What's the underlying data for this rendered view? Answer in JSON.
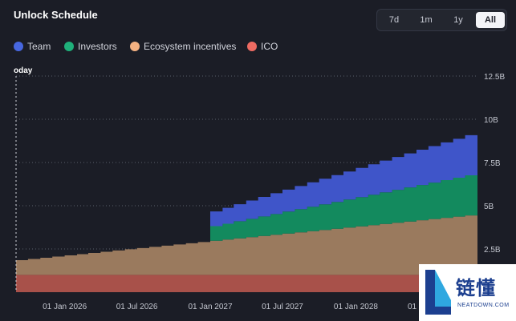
{
  "header": {
    "title": "Unlock Schedule"
  },
  "range_buttons": [
    {
      "label": "7d",
      "active": false
    },
    {
      "label": "1m",
      "active": false
    },
    {
      "label": "1y",
      "active": false
    },
    {
      "label": "All",
      "active": true
    }
  ],
  "colors": {
    "team": "#3f55c9",
    "investors": "#138a5e",
    "ecosystem": "#9a7a5e",
    "ico": "#a8514a",
    "legend_team": "#4767e0",
    "legend_investors": "#1fb07a",
    "legend_ecosystem": "#f4b282",
    "legend_ico": "#ee6b62"
  },
  "watermark": {
    "text": "链懂",
    "sub": "NEATDOWN.COM"
  },
  "chart_data": {
    "type": "area",
    "stacked": true,
    "today_label": "oday",
    "x_ticks": [
      "01 Jan 2026",
      "01 Jul 2026",
      "01 Jan 2027",
      "01 Jul 2027",
      "01 Jan 2028",
      "01 Jul 2028"
    ],
    "y_ticks": [
      "2.5B",
      "5B",
      "7.5B",
      "10B",
      "12.5B"
    ],
    "y_tick_values": [
      2.5,
      5,
      7.5,
      10,
      12.5
    ],
    "ylim": [
      0,
      12.5
    ],
    "y_unit": "B tokens",
    "x_start": "2025-09-01",
    "x_end": "2028-11-01",
    "gridlines": "horizontal dotted",
    "legend_position": "top-left",
    "x": [
      "2025-09-01",
      "2025-10-01",
      "2025-11-01",
      "2025-12-01",
      "2026-01-01",
      "2026-02-01",
      "2026-03-01",
      "2026-04-01",
      "2026-05-01",
      "2026-06-01",
      "2026-07-01",
      "2026-08-01",
      "2026-09-01",
      "2026-10-01",
      "2026-11-01",
      "2026-12-01",
      "2027-01-01",
      "2027-02-01",
      "2027-03-01",
      "2027-04-01",
      "2027-05-01",
      "2027-06-01",
      "2027-07-01",
      "2027-08-01",
      "2027-09-01",
      "2027-10-01",
      "2027-11-01",
      "2027-12-01",
      "2028-01-01",
      "2028-02-01",
      "2028-03-01",
      "2028-04-01",
      "2028-05-01",
      "2028-06-01",
      "2028-07-01",
      "2028-08-01",
      "2028-09-01",
      "2028-10-01",
      "2028-11-01"
    ],
    "series": [
      {
        "name": "ICO",
        "color_key": "ico",
        "values": [
          1.0,
          1.0,
          1.0,
          1.0,
          1.0,
          1.0,
          1.0,
          1.0,
          1.0,
          1.0,
          1.0,
          1.0,
          1.0,
          1.0,
          1.0,
          1.0,
          1.0,
          1.0,
          1.0,
          1.0,
          1.0,
          1.0,
          1.0,
          1.0,
          1.0,
          1.0,
          1.0,
          1.0,
          1.0,
          1.0,
          1.0,
          1.0,
          1.0,
          1.0,
          1.0,
          1.0,
          1.0,
          1.0,
          1.0
        ]
      },
      {
        "name": "Ecosystem incentives",
        "color_key": "ecosystem",
        "values": [
          0.85,
          0.92,
          0.99,
          1.06,
          1.13,
          1.2,
          1.27,
          1.34,
          1.41,
          1.48,
          1.55,
          1.62,
          1.69,
          1.76,
          1.83,
          1.9,
          1.97,
          2.04,
          2.11,
          2.18,
          2.25,
          2.32,
          2.39,
          2.46,
          2.53,
          2.6,
          2.67,
          2.74,
          2.81,
          2.88,
          2.95,
          3.02,
          3.09,
          3.16,
          3.23,
          3.3,
          3.37,
          3.44,
          3.51
        ]
      },
      {
        "name": "Investors",
        "color_key": "investors",
        "values": [
          0,
          0,
          0,
          0,
          0,
          0,
          0,
          0,
          0,
          0,
          0,
          0,
          0,
          0,
          0,
          0,
          0.85,
          0.92,
          0.99,
          1.06,
          1.13,
          1.2,
          1.27,
          1.34,
          1.41,
          1.48,
          1.55,
          1.62,
          1.69,
          1.76,
          1.83,
          1.9,
          1.97,
          2.04,
          2.11,
          2.18,
          2.25,
          2.32,
          2.39
        ]
      },
      {
        "name": "Team",
        "color_key": "team",
        "values": [
          0,
          0,
          0,
          0,
          0,
          0,
          0,
          0,
          0,
          0,
          0,
          0,
          0,
          0,
          0,
          0,
          0.85,
          0.92,
          0.99,
          1.06,
          1.13,
          1.2,
          1.27,
          1.34,
          1.41,
          1.48,
          1.55,
          1.62,
          1.69,
          1.76,
          1.83,
          1.9,
          1.97,
          2.04,
          2.11,
          2.18,
          2.25,
          2.32,
          2.39
        ]
      }
    ]
  }
}
